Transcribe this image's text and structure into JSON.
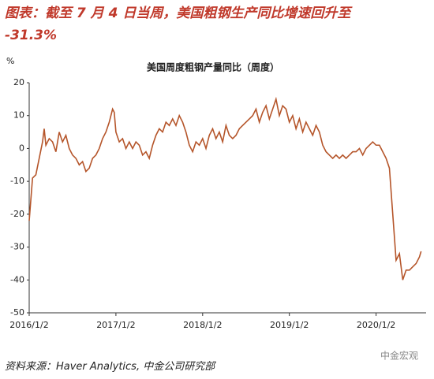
{
  "chart_data": {
    "type": "line",
    "title": "图表：截至 7 月 4 日当周，美国粗钢生产同比增速回升至",
    "title_value": "-31.3%",
    "chart_title": "美国周度粗钢产量同比（周度）",
    "y_unit": "%",
    "source": "资料来源：Haver Analytics,  中金公司研究部",
    "watermark": "中金宏观",
    "xlim": [
      0,
      238
    ],
    "xticks": [
      {
        "value": 0,
        "label": "2016/1/2"
      },
      {
        "value": 52,
        "label": "2017/1/2"
      },
      {
        "value": 104,
        "label": "2018/1/2"
      },
      {
        "value": 156,
        "label": "2019/1/2"
      },
      {
        "value": 208,
        "label": "2020/1/2"
      }
    ],
    "ylim": [
      -50,
      20
    ],
    "yticks": [
      20,
      10,
      0,
      -10,
      -20,
      -30,
      -40,
      -50
    ],
    "grid": false,
    "series": [
      {
        "name": "美国周度粗钢产量同比",
        "color": "#b5552a",
        "x": [
          0,
          2,
          4,
          6,
          8,
          9,
          10,
          12,
          14,
          16,
          18,
          20,
          22,
          24,
          26,
          28,
          30,
          32,
          34,
          36,
          38,
          40,
          42,
          44,
          46,
          48,
          50,
          51,
          52,
          54,
          56,
          58,
          60,
          62,
          64,
          66,
          68,
          70,
          72,
          74,
          76,
          78,
          80,
          82,
          84,
          86,
          88,
          90,
          92,
          94,
          96,
          98,
          100,
          102,
          104,
          106,
          108,
          110,
          112,
          114,
          116,
          118,
          120,
          122,
          124,
          126,
          128,
          130,
          132,
          134,
          136,
          138,
          140,
          142,
          144,
          146,
          148,
          150,
          152,
          154,
          156,
          158,
          160,
          162,
          164,
          166,
          168,
          170,
          172,
          174,
          176,
          178,
          180,
          182,
          184,
          186,
          188,
          190,
          192,
          194,
          196,
          198,
          200,
          202,
          204,
          206,
          208,
          210,
          212,
          214,
          216,
          218,
          220,
          222,
          224,
          226,
          228,
          230,
          232,
          234,
          235
        ],
        "values": [
          -22,
          -9,
          -8,
          -3,
          2,
          6,
          1,
          3,
          2,
          -1,
          5,
          2,
          4,
          0,
          -2,
          -3,
          -5,
          -4,
          -7,
          -6,
          -3,
          -2,
          0,
          3,
          5,
          8,
          12,
          11,
          5,
          2,
          3,
          0,
          2,
          0,
          2,
          1,
          -2,
          -1,
          -3,
          1,
          4,
          6,
          5,
          8,
          7,
          9,
          7,
          10,
          8,
          5,
          1,
          -1,
          2,
          1,
          3,
          0,
          4,
          6,
          3,
          5,
          2,
          7,
          4,
          3,
          4,
          6,
          7,
          8,
          9,
          10,
          12,
          8,
          11,
          13,
          9,
          12,
          15,
          10,
          13,
          12,
          8,
          10,
          6,
          9,
          5,
          8,
          6,
          4,
          7,
          5,
          1,
          -1,
          -2,
          -3,
          -2,
          -3,
          -2,
          -3,
          -2,
          -1,
          -1,
          0,
          -2,
          0,
          1,
          2,
          1,
          1,
          -1,
          -3,
          -6,
          -20,
          -34,
          -32,
          -40,
          -37,
          -37,
          -36,
          -35,
          -33,
          -31.3
        ]
      }
    ]
  }
}
